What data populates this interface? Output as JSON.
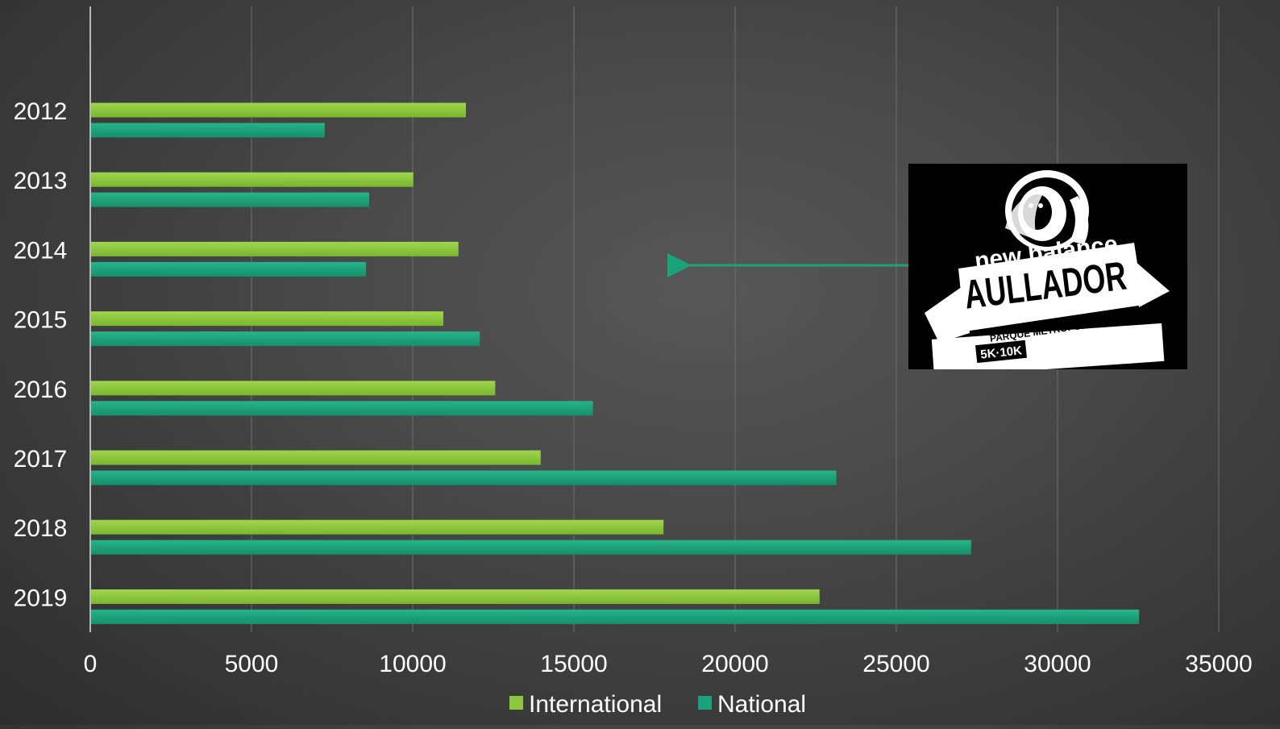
{
  "chart_data": {
    "type": "bar",
    "orientation": "horizontal",
    "categories": [
      "2012",
      "2013",
      "2014",
      "2015",
      "2016",
      "2017",
      "2018",
      "2019"
    ],
    "series": [
      {
        "name": "International",
        "color": "#8cc63f",
        "values": [
          11650,
          10020,
          11420,
          10950,
          12560,
          13970,
          17780,
          22620
        ]
      },
      {
        "name": "National",
        "color": "#1aa37a",
        "values": [
          7270,
          8650,
          8550,
          12080,
          15590,
          23140,
          27320,
          32530
        ]
      }
    ],
    "x_ticks": [
      "0",
      "5000",
      "10000",
      "15000",
      "20000",
      "25000",
      "30000",
      "35000"
    ],
    "xlim": [
      0,
      35000
    ],
    "grid": true,
    "legend": "bottom",
    "title": "",
    "xlabel": "",
    "ylabel": ""
  },
  "logo": {
    "brand": "new balance",
    "event": "AULLADOR",
    "venue": "PARQUE METROPOLITANO",
    "distances": "5K·10K",
    "icon": "howler-monkey-icon"
  }
}
